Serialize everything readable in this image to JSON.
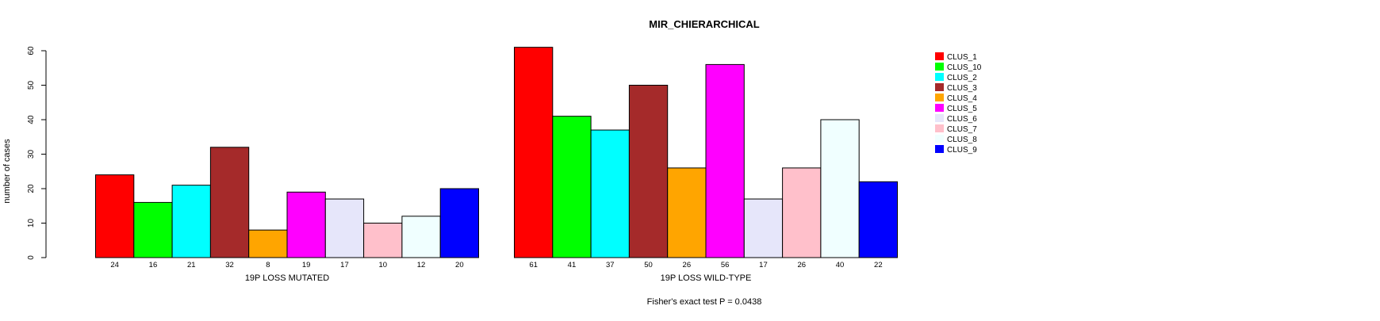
{
  "chart_data": {
    "type": "bar",
    "title": "MIR_CHIERARCHICAL",
    "ylabel": "number of cases",
    "ylim": [
      0,
      60
    ],
    "yticks": [
      0,
      10,
      20,
      30,
      40,
      50,
      60
    ],
    "categories": [
      "CLUS_1",
      "CLUS_10",
      "CLUS_2",
      "CLUS_3",
      "CLUS_4",
      "CLUS_5",
      "CLUS_6",
      "CLUS_7",
      "CLUS_8",
      "CLUS_9"
    ],
    "colors": [
      "#FF0000",
      "#00FF00",
      "#00FFFF",
      "#A52A2A",
      "#FFA500",
      "#FF00FF",
      "#E6E6FA",
      "#FFC0CB",
      "#F0FFFF",
      "#0000FF"
    ],
    "panels": [
      {
        "xlabel": "19P LOSS MUTATED",
        "values": [
          24,
          16,
          21,
          32,
          8,
          19,
          17,
          10,
          12,
          20
        ]
      },
      {
        "xlabel": "19P LOSS WILD-TYPE",
        "values": [
          61,
          41,
          37,
          50,
          26,
          56,
          17,
          26,
          40,
          22
        ]
      }
    ],
    "legend": {
      "placement": "top-right",
      "entries": [
        "CLUS_1",
        "CLUS_10",
        "CLUS_2",
        "CLUS_3",
        "CLUS_4",
        "CLUS_5",
        "CLUS_6",
        "CLUS_7",
        "CLUS_8",
        "CLUS_9"
      ]
    },
    "annotation": "Fisher's exact test P = 0.0438",
    "grid": false
  }
}
